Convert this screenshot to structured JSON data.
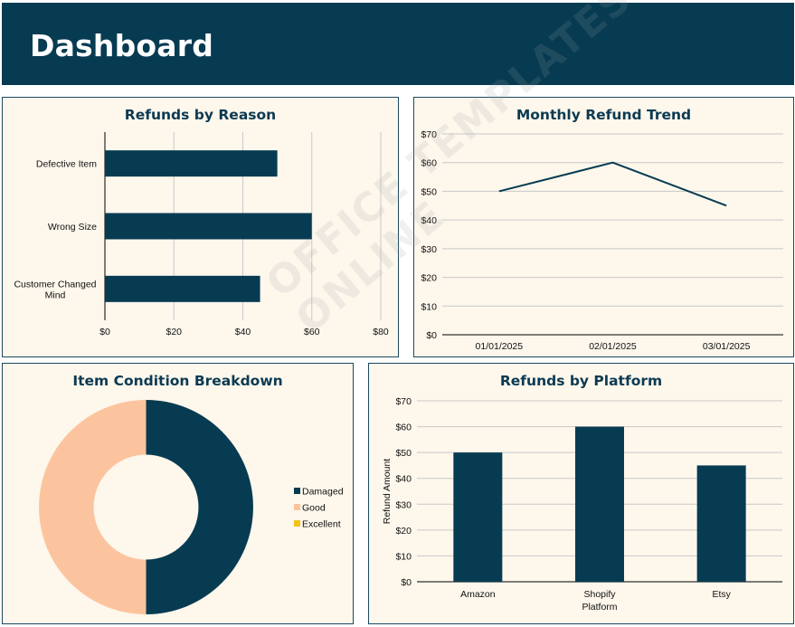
{
  "header": {
    "title": "Dashboard"
  },
  "colors": {
    "primary": "#073b52",
    "good": "#fcc49e",
    "excellent": "#f2c318",
    "panel_bg": "#fdf7ec",
    "header_bg": "#073b52"
  },
  "watermark": "OFFICE TEMPLATES ONLINE",
  "chart_data": [
    {
      "id": "refunds-by-reason",
      "type": "bar",
      "orientation": "horizontal",
      "title": "Refunds by Reason",
      "categories": [
        "Defective Item",
        "Wrong Size",
        "Customer Changed Mind"
      ],
      "values": [
        50,
        60,
        45
      ],
      "xlim": [
        0,
        80
      ],
      "ticks": [
        "$0",
        "$20",
        "$40",
        "$60",
        "$80"
      ],
      "grid": true
    },
    {
      "id": "monthly-refund-trend",
      "type": "line",
      "title": "Monthly Refund Trend",
      "x": [
        "01/01/2025",
        "02/01/2025",
        "03/01/2025"
      ],
      "values": [
        50,
        60,
        45
      ],
      "ylim": [
        0,
        70
      ],
      "ticks": [
        "$0",
        "$10",
        "$20",
        "$30",
        "$40",
        "$50",
        "$60",
        "$70"
      ],
      "grid": true
    },
    {
      "id": "item-condition-breakdown",
      "type": "pie",
      "style": "donut",
      "title": "Item Condition Breakdown",
      "categories": [
        "Damaged",
        "Good",
        "Excellent"
      ],
      "values": [
        50,
        50,
        0
      ],
      "legend": "right"
    },
    {
      "id": "refunds-by-platform",
      "type": "bar",
      "title": "Refunds by Platform",
      "categories": [
        "Amazon",
        "Shopify",
        "Etsy"
      ],
      "values": [
        50,
        60,
        45
      ],
      "ylim": [
        0,
        70
      ],
      "ticks": [
        "$0",
        "$10",
        "$20",
        "$30",
        "$40",
        "$50",
        "$60",
        "$70"
      ],
      "xlabel": "Platform",
      "ylabel": "Refund Amount",
      "grid": true
    }
  ]
}
